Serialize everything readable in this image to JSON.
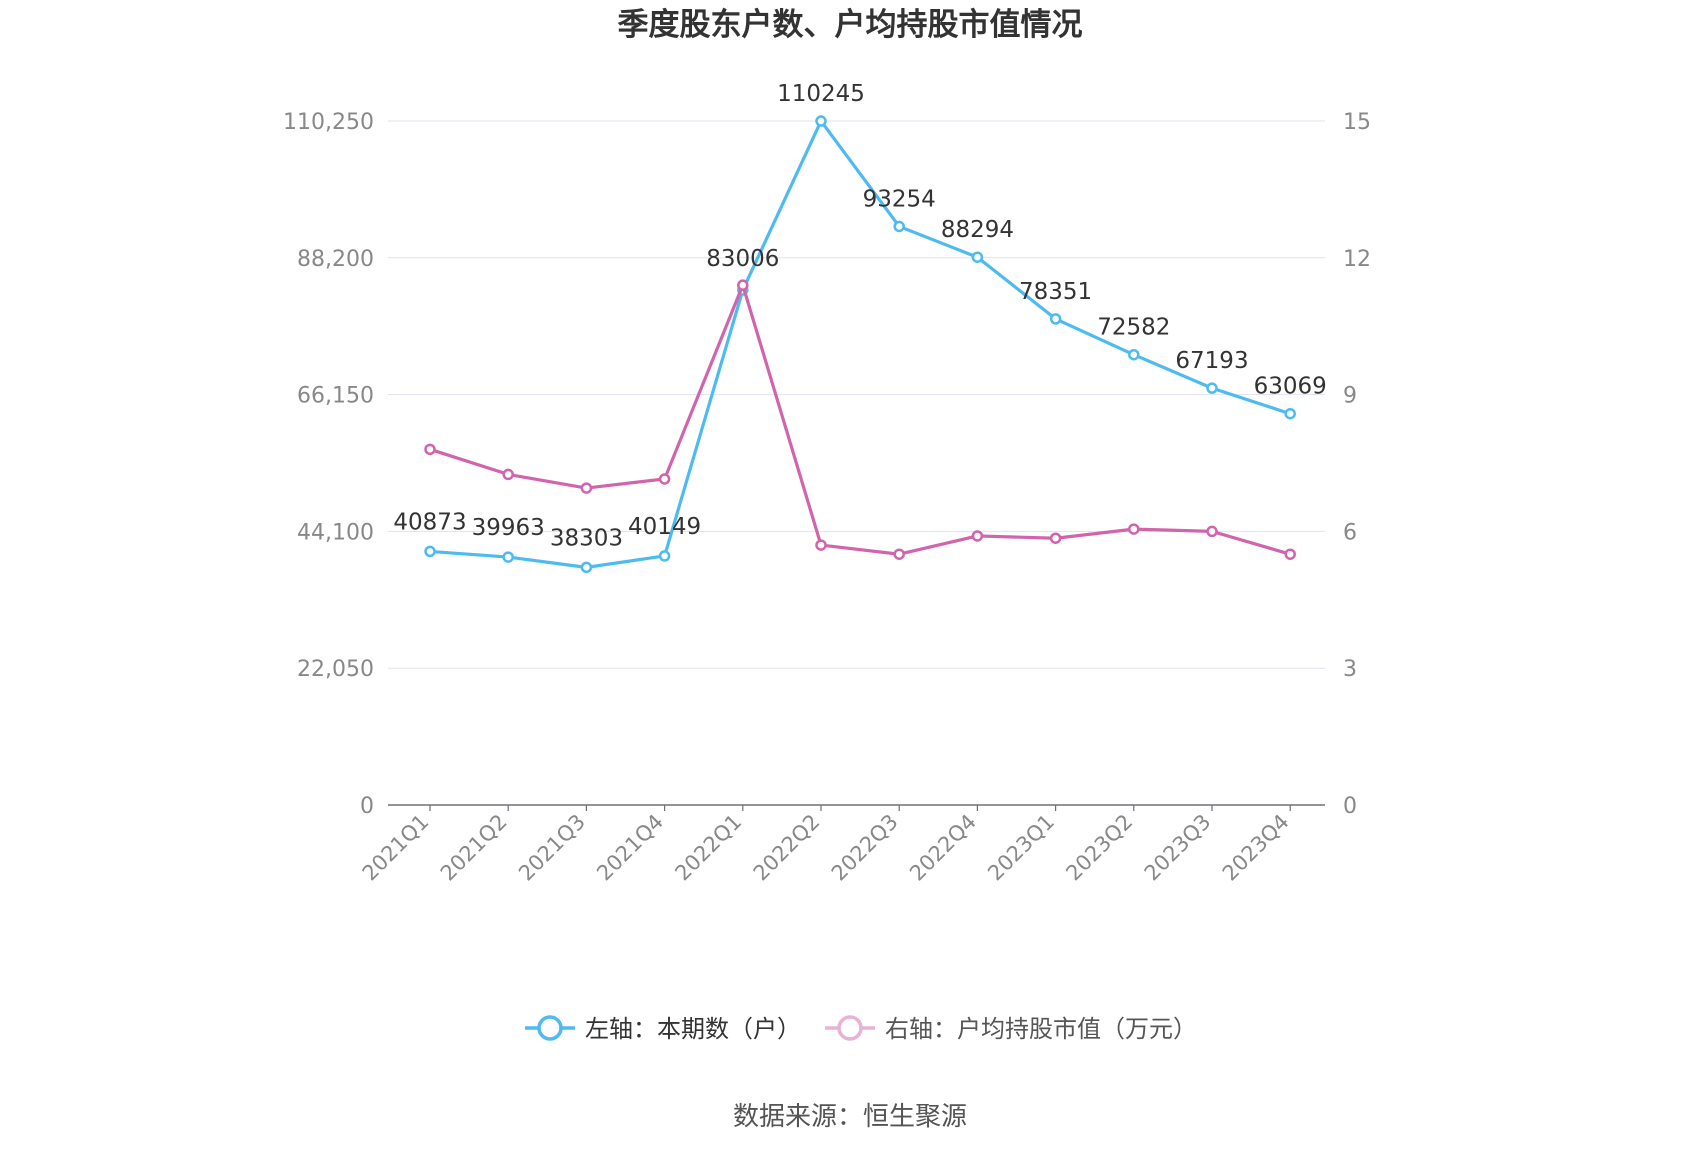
{
  "chart_data": {
    "type": "line",
    "title": "季度股东户数、户均持股市值情况",
    "categories": [
      "2021Q1",
      "2021Q2",
      "2021Q3",
      "2021Q4",
      "2022Q1",
      "2022Q2",
      "2022Q3",
      "2022Q4",
      "2023Q1",
      "2023Q2",
      "2023Q3",
      "2023Q4"
    ],
    "left_axis": {
      "ticks": [
        "0",
        "22,050",
        "44,100",
        "66,150",
        "88,200",
        "110,250"
      ],
      "ylim": [
        0,
        110250
      ]
    },
    "right_axis": {
      "ticks": [
        "0",
        "3",
        "6",
        "9",
        "12",
        "15"
      ],
      "ylim": [
        0,
        15
      ]
    },
    "series": [
      {
        "name": "左轴：本期数（户）",
        "axis": "left",
        "color": "#4dbbf0",
        "values": [
          40873,
          39963,
          38303,
          40149,
          83006,
          110245,
          93254,
          88294,
          78351,
          72582,
          67193,
          63069
        ],
        "labels": [
          "40873",
          "39963",
          "38303",
          "40149",
          "83006",
          "110245",
          "93254",
          "88294",
          "78351",
          "72582",
          "67193",
          "63069"
        ]
      },
      {
        "name": "右轴：户均持股市值（万元）",
        "axis": "right",
        "color": "#d164ac",
        "values": [
          7.8,
          7.25,
          6.95,
          7.15,
          11.4,
          5.7,
          5.5,
          5.9,
          5.85,
          6.05,
          6.0,
          5.5
        ]
      }
    ],
    "grid": true,
    "legend_position": "bottom",
    "source": "数据来源：恒生聚源"
  }
}
